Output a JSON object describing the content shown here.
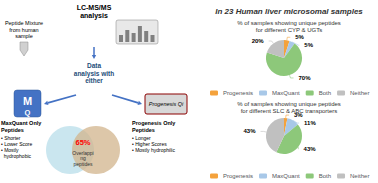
{
  "chart_data": [
    {
      "type": "pie",
      "title": "In 23 Human liver microsomal samples",
      "subtitle": "% of samples showing unique peptides\nfor different CYP & UGTs",
      "categories": [
        "Progenesis",
        "MaxQuant",
        "Both",
        "Neither"
      ],
      "values": [
        5,
        5,
        70,
        20
      ],
      "value_labels": [
        "5%",
        "5%",
        "70%",
        "20%"
      ],
      "colors": [
        "#F4A23C",
        "#A8C8E8",
        "#8DC87A",
        "#C0C0C0"
      ],
      "data_labels": true,
      "legend": "bottom",
      "annotations": [
        "LC-MS/MS",
        "analysis",
        "Peptide Mixture\nfrom human\nsample",
        "Data\nanalysis with\neither",
        "M",
        "Q",
        "Progenesis Qi",
        "65%",
        "Overlappi\nng\npeptides",
        "MaxQuant Only\nPeptides",
        "• Shorter\n• Lower Score\n• Mostly\n  hydrophobic",
        "Progenesis Only\nPeptides",
        "• Longer\n• Higher Scores\n• Mostly hydrophilic"
      ]
    },
    {
      "type": "pie",
      "subtitle": "% of samples showing unique peptides\nfor different SLC & ABC transporters",
      "categories": [
        "Progenesis",
        "MaxQuant",
        "Both",
        "Neither"
      ],
      "values": [
        3,
        11,
        43,
        43
      ],
      "value_labels": [
        "3%",
        "11%",
        "43%",
        "43%"
      ],
      "colors": [
        "#F4A23C",
        "#A8C8E8",
        "#8DC87A",
        "#C0C0C0"
      ],
      "data_labels": true,
      "legend": "bottom"
    }
  ]
}
